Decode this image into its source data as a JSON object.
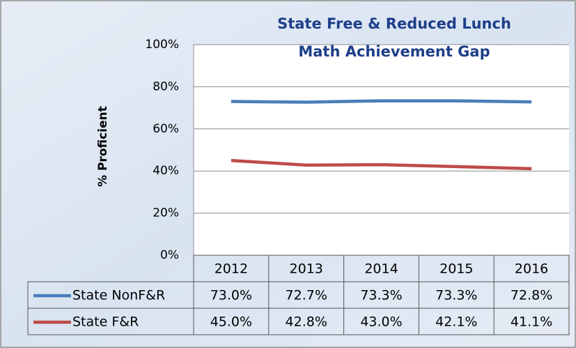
{
  "chart_data": {
    "type": "line",
    "title": [
      "State Free & Reduced Lunch",
      "Math Achievement Gap"
    ],
    "y_label": "% Proficient",
    "categories": [
      "2012",
      "2013",
      "2014",
      "2015",
      "2016"
    ],
    "series": [
      {
        "name": "State NonF&R",
        "color": "#4a7ebb",
        "values": [
          73.0,
          72.7,
          73.3,
          73.3,
          72.8
        ],
        "value_labels": [
          "73.0%",
          "72.7%",
          "73.3%",
          "73.3%",
          "72.8%"
        ]
      },
      {
        "name": "State F&R",
        "color": "#be4b48",
        "values": [
          45.0,
          42.8,
          43.0,
          42.1,
          41.1
        ],
        "value_labels": [
          "45.0%",
          "42.8%",
          "43.0%",
          "42.1%",
          "41.1%"
        ]
      }
    ],
    "ylim": [
      0,
      100
    ],
    "yticks": [
      {
        "value": 0,
        "label": "0%"
      },
      {
        "value": 20,
        "label": "20%"
      },
      {
        "value": 40,
        "label": "40%"
      },
      {
        "value": 60,
        "label": "60%"
      },
      {
        "value": 80,
        "label": "80%"
      },
      {
        "value": 100,
        "label": "100%"
      }
    ],
    "grid": true
  }
}
